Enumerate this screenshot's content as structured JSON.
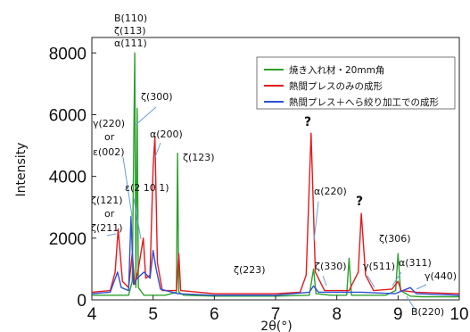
{
  "chart_data": {
    "type": "line",
    "xlabel": "2θ(°)",
    "ylabel": "Intensity",
    "xlim": [
      4,
      10
    ],
    "ylim": [
      0,
      8500
    ],
    "xticks": [
      "4",
      "5",
      "6",
      "7",
      "8",
      "9",
      "10"
    ],
    "yticks": [
      "0",
      "2000",
      "4000",
      "6000",
      "8000"
    ],
    "legend_position": "top-right",
    "series": [
      {
        "name": "焼き入れ材・20mm角",
        "color": "#2ca02c",
        "points": [
          [
            4.0,
            150
          ],
          [
            4.6,
            150
          ],
          [
            4.66,
            600
          ],
          [
            4.7,
            8000
          ],
          [
            4.72,
            400
          ],
          [
            4.74,
            6200
          ],
          [
            4.76,
            400
          ],
          [
            4.85,
            150
          ],
          [
            5.2,
            150
          ],
          [
            5.38,
            250
          ],
          [
            5.4,
            4750
          ],
          [
            5.42,
            250
          ],
          [
            5.5,
            150
          ],
          [
            6.0,
            120
          ],
          [
            7.0,
            120
          ],
          [
            7.55,
            150
          ],
          [
            7.62,
            1000
          ],
          [
            7.66,
            200
          ],
          [
            7.9,
            150
          ],
          [
            8.16,
            150
          ],
          [
            8.2,
            1350
          ],
          [
            8.24,
            150
          ],
          [
            8.8,
            150
          ],
          [
            8.96,
            300
          ],
          [
            9.0,
            1500
          ],
          [
            9.04,
            300
          ],
          [
            9.2,
            120
          ],
          [
            9.4,
            100
          ],
          [
            10.0,
            100
          ]
        ]
      },
      {
        "name": "熱間プレスのみの成形",
        "color": "#e31a1c",
        "points": [
          [
            4.0,
            250
          ],
          [
            4.3,
            300
          ],
          [
            4.38,
            900
          ],
          [
            4.43,
            2300
          ],
          [
            4.5,
            600
          ],
          [
            4.6,
            400
          ],
          [
            4.66,
            1500
          ],
          [
            4.7,
            500
          ],
          [
            4.75,
            900
          ],
          [
            4.84,
            2000
          ],
          [
            4.88,
            700
          ],
          [
            4.95,
            800
          ],
          [
            5.0,
            4300
          ],
          [
            5.03,
            5300
          ],
          [
            5.07,
            1200
          ],
          [
            5.15,
            300
          ],
          [
            5.38,
            300
          ],
          [
            5.42,
            1500
          ],
          [
            5.45,
            300
          ],
          [
            6.0,
            200
          ],
          [
            7.0,
            200
          ],
          [
            7.4,
            250
          ],
          [
            7.5,
            800
          ],
          [
            7.58,
            5400
          ],
          [
            7.65,
            900
          ],
          [
            7.8,
            300
          ],
          [
            8.2,
            300
          ],
          [
            8.35,
            900
          ],
          [
            8.4,
            2800
          ],
          [
            8.47,
            800
          ],
          [
            8.6,
            300
          ],
          [
            8.9,
            350
          ],
          [
            9.0,
            600
          ],
          [
            9.05,
            300
          ],
          [
            9.3,
            250
          ],
          [
            10.0,
            200
          ]
        ]
      },
      {
        "name": "熱間プレス＋へら絞り加工での成形",
        "color": "#2f4fd6",
        "points": [
          [
            4.0,
            200
          ],
          [
            4.3,
            250
          ],
          [
            4.42,
            900
          ],
          [
            4.48,
            400
          ],
          [
            4.6,
            300
          ],
          [
            4.64,
            2700
          ],
          [
            4.68,
            500
          ],
          [
            4.74,
            700
          ],
          [
            4.85,
            900
          ],
          [
            4.95,
            700
          ],
          [
            5.0,
            1600
          ],
          [
            5.05,
            1000
          ],
          [
            5.12,
            350
          ],
          [
            5.4,
            200
          ],
          [
            6.0,
            150
          ],
          [
            7.0,
            150
          ],
          [
            7.55,
            250
          ],
          [
            7.62,
            450
          ],
          [
            7.7,
            250
          ],
          [
            8.4,
            250
          ],
          [
            8.95,
            200
          ],
          [
            9.2,
            400
          ],
          [
            9.3,
            200
          ],
          [
            10.0,
            150
          ]
        ]
      }
    ],
    "annotations": [
      {
        "text": "B(110)"
      },
      {
        "text": "ζ(113)"
      },
      {
        "text": "α(111)"
      },
      {
        "text": "ζ(300)"
      },
      {
        "text": "γ(220)"
      },
      {
        "text": "or"
      },
      {
        "text": "ε(002)"
      },
      {
        "text": "α(200)"
      },
      {
        "text": "ζ(123)"
      },
      {
        "text": "ε(2 10 1)"
      },
      {
        "text": "ζ(121)"
      },
      {
        "text": "or"
      },
      {
        "text": "ζ(211)"
      },
      {
        "text": "ζ(223)"
      },
      {
        "text": "?"
      },
      {
        "text": "α(220)"
      },
      {
        "text": "?"
      },
      {
        "text": "ζ(330)"
      },
      {
        "text": "ζ(306)"
      },
      {
        "text": "γ(511)"
      },
      {
        "text": "α(311)"
      },
      {
        "text": "γ(440)"
      },
      {
        "text": "B(220)"
      }
    ]
  }
}
